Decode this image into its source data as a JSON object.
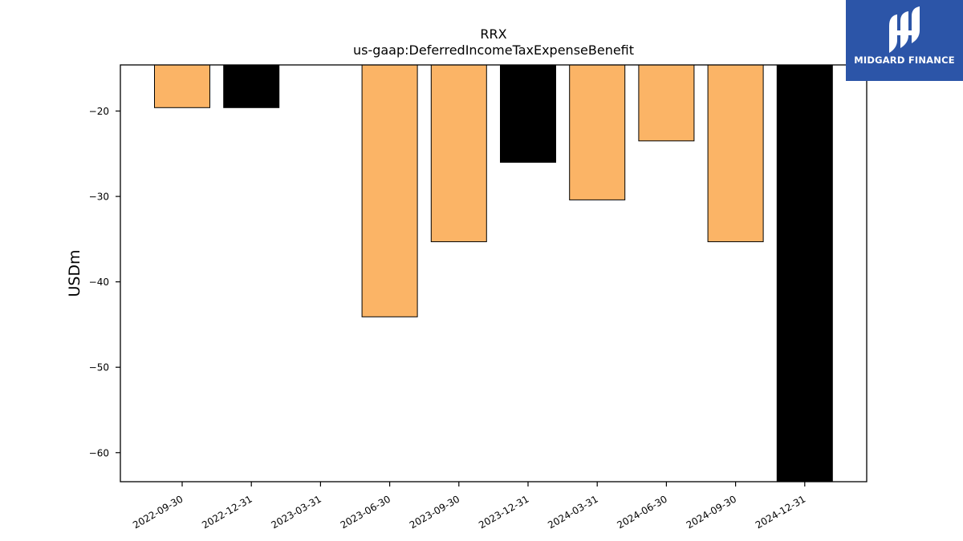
{
  "brand": {
    "name": "MIDGARD FINANCE",
    "bg_color": "#2c55a8"
  },
  "chart_data": {
    "type": "bar",
    "title": "RRX",
    "subtitle": "us-gaap:DeferredIncomeTaxExpenseBenefit",
    "xlabel": "",
    "ylabel": "USDm",
    "categories": [
      "2022-09-30",
      "2022-12-31",
      "2023-03-31",
      "2023-06-30",
      "2023-09-30",
      "2023-12-31",
      "2024-03-31",
      "2024-06-30",
      "2024-09-30",
      "2024-12-31"
    ],
    "values": [
      -19.6,
      -19.6,
      null,
      -44.1,
      -35.3,
      -26.0,
      -30.4,
      -23.5,
      -35.3,
      -63.4
    ],
    "bar_colors": [
      "#fbb466",
      "#000000",
      null,
      "#fbb466",
      "#fbb466",
      "#000000",
      "#fbb466",
      "#fbb466",
      "#fbb466",
      "#000000"
    ],
    "ylim": [
      -63.4,
      -14.6
    ],
    "yticks": [
      -20,
      -30,
      -40,
      -50,
      -60
    ],
    "ytick_labels": [
      "−20",
      "−30",
      "−40",
      "−50",
      "−60"
    ],
    "grid": false,
    "legend": "none"
  }
}
